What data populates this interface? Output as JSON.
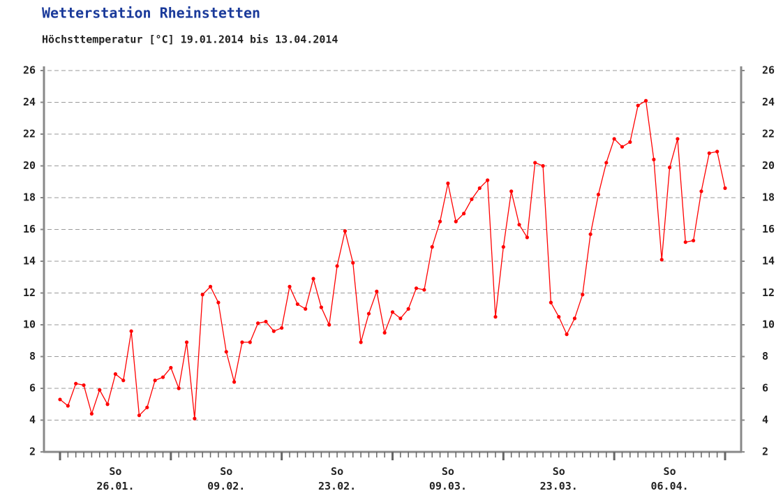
{
  "chart_data": {
    "type": "line",
    "title": "Wetterstation Rheinstetten",
    "subtitle": "Höchsttemperatur [°C] 19.01.2014 bis 13.04.2014",
    "categories": [
      null,
      null,
      null,
      null,
      null,
      null,
      null,
      "So\n26.01.",
      null,
      null,
      null,
      null,
      null,
      null,
      null,
      null,
      null,
      null,
      null,
      null,
      null,
      "So\n09.02.",
      null,
      null,
      null,
      null,
      null,
      null,
      null,
      null,
      null,
      null,
      null,
      null,
      null,
      "So\n23.02.",
      null,
      null,
      null,
      null,
      null,
      null,
      null,
      null,
      null,
      null,
      null,
      null,
      null,
      "So\n09.03.",
      null,
      null,
      null,
      null,
      null,
      null,
      null,
      null,
      null,
      null,
      null,
      null,
      null,
      "So\n23.03.",
      null,
      null,
      null,
      null,
      null,
      null,
      null,
      null,
      null,
      null,
      null,
      null,
      null,
      "So\n06.04.",
      null,
      null,
      null,
      null,
      null,
      null,
      null
    ],
    "series": [
      {
        "name": "Höchsttemperatur",
        "color": "#ff0000",
        "values": [
          5.3,
          4.9,
          6.3,
          6.2,
          4.4,
          5.9,
          5.0,
          6.9,
          6.5,
          9.6,
          4.3,
          4.8,
          6.5,
          6.7,
          7.3,
          6.0,
          8.9,
          4.1,
          11.9,
          12.4,
          11.4,
          8.3,
          6.4,
          8.9,
          8.9,
          10.1,
          10.2,
          9.6,
          9.8,
          12.4,
          11.3,
          11.0,
          12.9,
          11.1,
          10.0,
          13.7,
          15.9,
          13.9,
          8.9,
          10.7,
          12.1,
          9.5,
          10.8,
          10.4,
          11.0,
          12.3,
          12.2,
          14.9,
          16.5,
          18.9,
          16.5,
          17.0,
          17.9,
          18.6,
          19.1,
          10.5,
          14.9,
          18.4,
          16.3,
          15.5,
          20.2,
          20.0,
          11.4,
          10.5,
          9.4,
          10.4,
          11.9,
          15.7,
          18.2,
          20.2,
          21.7,
          21.2,
          21.5,
          23.8,
          24.1,
          20.4,
          14.1,
          19.9,
          21.7,
          15.2,
          15.3,
          18.4,
          20.8,
          20.9,
          18.6
        ]
      }
    ],
    "ylim": [
      2,
      26
    ],
    "yticks": [
      2,
      4,
      6,
      8,
      10,
      12,
      14,
      16,
      18,
      20,
      22,
      24,
      26
    ],
    "y2lim": [
      2,
      26
    ],
    "y2ticks": [
      2,
      4,
      6,
      8,
      10,
      12,
      14,
      16,
      18,
      20,
      22,
      24,
      26
    ],
    "grid": true
  }
}
